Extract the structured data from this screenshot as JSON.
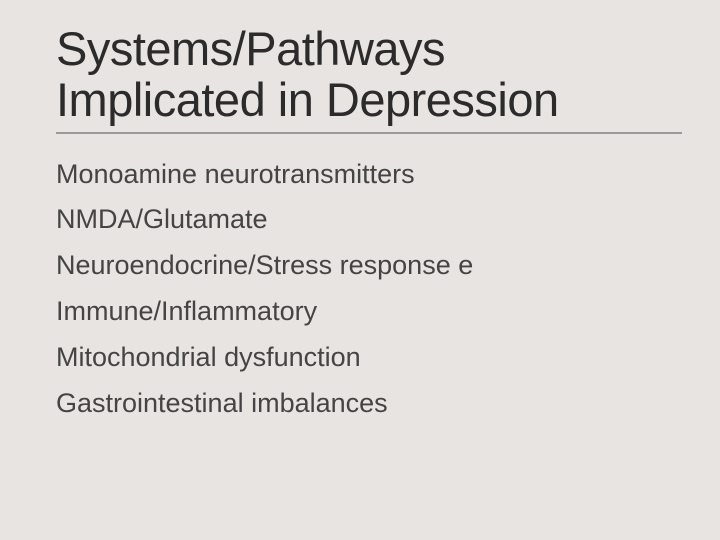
{
  "slide": {
    "background_color": "#e8e4e1",
    "title": {
      "line1": "Systems/Pathways",
      "line2": "Implicated in Depression",
      "fontsize": 47,
      "color": "#2b2b2b",
      "weight": 400
    },
    "rule_color": "#9a9a9a",
    "body_fontsize": 27,
    "body_color": "#444444",
    "bullets": [
      "Monoamine neurotransmitters",
      "NMDA/Glutamate",
      "Neuroendocrine/Stress response e",
      "Immune/Inflammatory",
      "Mitochondrial dysfunction",
      "Gastrointestinal imbalances"
    ]
  }
}
